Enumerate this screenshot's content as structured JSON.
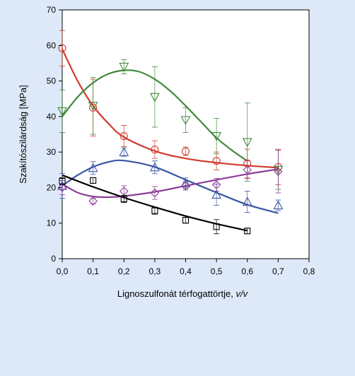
{
  "chart_data": {
    "type": "scatter",
    "xlabel": "Lignoszulfonát térfogattörtje, ",
    "xlabel_unit": "v/v",
    "ylabel": "Szakítószilárdság [MPa]",
    "xlim": [
      0,
      0.8
    ],
    "ylim": [
      0,
      70
    ],
    "x_ticks": [
      "0,0",
      "0,1",
      "0,2",
      "0,3",
      "0,4",
      "0,5",
      "0,6",
      "0,7",
      "0,8"
    ],
    "y_ticks": [
      "0",
      "10",
      "20",
      "30",
      "40",
      "50",
      "60",
      "70"
    ],
    "grid": false,
    "legend": "none",
    "series": [
      {
        "marker": "circle",
        "color": "#d23a2c",
        "points": [
          [
            0.0,
            59.2
          ],
          [
            0.1,
            42.5
          ],
          [
            0.2,
            34.5
          ],
          [
            0.3,
            30.7
          ],
          [
            0.4,
            30.2
          ],
          [
            0.5,
            27.5
          ],
          [
            0.6,
            26.8
          ],
          [
            0.7,
            25.8
          ]
        ],
        "errors": [
          [
            5.0,
            5.0
          ],
          [
            8.0,
            8.0
          ],
          [
            3.0,
            3.0
          ],
          [
            2.5,
            2.5
          ],
          [
            1.2,
            1.2
          ],
          [
            2.5,
            2.5
          ],
          [
            4.0,
            4.0
          ],
          [
            5.0,
            5.0
          ]
        ],
        "curve": [
          [
            0.0,
            59.0
          ],
          [
            0.05,
            50.0
          ],
          [
            0.1,
            43.0
          ],
          [
            0.15,
            38.0
          ],
          [
            0.2,
            34.2
          ],
          [
            0.3,
            30.3
          ],
          [
            0.4,
            28.2
          ],
          [
            0.5,
            27.0
          ],
          [
            0.6,
            26.2
          ],
          [
            0.7,
            25.6
          ]
        ]
      },
      {
        "marker": "triangle-down",
        "color": "#3f8a3a",
        "points": [
          [
            0.0,
            41.5
          ],
          [
            0.1,
            43.0
          ],
          [
            0.2,
            54.0
          ],
          [
            0.3,
            45.5
          ],
          [
            0.4,
            39.0
          ],
          [
            0.5,
            34.5
          ],
          [
            0.6,
            32.8
          ],
          [
            0.7,
            25.0
          ]
        ],
        "errors": [
          [
            6.0,
            6.0
          ],
          [
            8.0,
            8.0
          ],
          [
            2.0,
            2.0
          ],
          [
            8.5,
            8.5
          ],
          [
            3.5,
            3.5
          ],
          [
            5.0,
            5.0
          ],
          [
            11.0,
            11.0
          ],
          [
            5.5,
            5.5
          ]
        ],
        "curve": [
          [
            0.0,
            40.0
          ],
          [
            0.05,
            45.5
          ],
          [
            0.1,
            49.5
          ],
          [
            0.15,
            52.0
          ],
          [
            0.2,
            53.0
          ],
          [
            0.25,
            52.6
          ],
          [
            0.3,
            50.5
          ],
          [
            0.35,
            47.2
          ],
          [
            0.4,
            43.0
          ],
          [
            0.45,
            38.5
          ],
          [
            0.5,
            34.0
          ],
          [
            0.55,
            30.5
          ],
          [
            0.6,
            27.5
          ]
        ]
      },
      {
        "marker": "triangle-up",
        "color": "#3a55a4",
        "points": [
          [
            0.0,
            20.5
          ],
          [
            0.1,
            25.5
          ],
          [
            0.2,
            30.0
          ],
          [
            0.3,
            25.7
          ],
          [
            0.4,
            21.2
          ],
          [
            0.5,
            18.0
          ],
          [
            0.6,
            16.0
          ],
          [
            0.7,
            15.0
          ]
        ],
        "errors": [
          [
            3.5,
            3.5
          ],
          [
            1.8,
            1.8
          ],
          [
            1.2,
            1.2
          ],
          [
            1.8,
            1.8
          ],
          [
            1.5,
            1.5
          ],
          [
            3.0,
            3.0
          ],
          [
            3.0,
            3.0
          ],
          [
            1.5,
            1.5
          ]
        ],
        "curve": [
          [
            0.0,
            20.5
          ],
          [
            0.05,
            23.5
          ],
          [
            0.1,
            25.8
          ],
          [
            0.15,
            27.2
          ],
          [
            0.2,
            27.6
          ],
          [
            0.3,
            25.8
          ],
          [
            0.4,
            22.2
          ],
          [
            0.5,
            18.6
          ],
          [
            0.6,
            15.2
          ],
          [
            0.7,
            12.8
          ]
        ]
      },
      {
        "marker": "diamond",
        "color": "#8e3e9a",
        "points": [
          [
            0.0,
            20.0
          ],
          [
            0.1,
            16.2
          ],
          [
            0.2,
            19.0
          ],
          [
            0.3,
            18.5
          ],
          [
            0.4,
            20.5
          ],
          [
            0.5,
            20.8
          ],
          [
            0.6,
            25.0
          ],
          [
            0.7,
            24.5
          ]
        ],
        "errors": [
          [
            2.0,
            2.0
          ],
          [
            0.8,
            0.8
          ],
          [
            1.5,
            1.5
          ],
          [
            1.8,
            1.8
          ],
          [
            1.2,
            1.2
          ],
          [
            1.8,
            1.8
          ],
          [
            2.5,
            2.5
          ],
          [
            6.0,
            6.0
          ]
        ],
        "curve": [
          [
            0.0,
            21.0
          ],
          [
            0.05,
            18.6
          ],
          [
            0.1,
            17.5
          ],
          [
            0.15,
            17.3
          ],
          [
            0.2,
            17.6
          ],
          [
            0.3,
            18.8
          ],
          [
            0.4,
            20.5
          ],
          [
            0.5,
            22.2
          ],
          [
            0.6,
            23.8
          ],
          [
            0.7,
            25.2
          ]
        ]
      },
      {
        "marker": "square",
        "color": "#000000",
        "points": [
          [
            0.0,
            21.8
          ],
          [
            0.1,
            22.0
          ],
          [
            0.2,
            16.8
          ],
          [
            0.3,
            13.5
          ],
          [
            0.4,
            10.8
          ],
          [
            0.5,
            9.0
          ],
          [
            0.6,
            7.8
          ]
        ],
        "errors": [
          [
            1.0,
            1.0
          ],
          [
            0.8,
            0.8
          ],
          [
            1.0,
            1.0
          ],
          [
            1.0,
            1.0
          ],
          [
            0.8,
            0.8
          ],
          [
            2.0,
            2.0
          ],
          [
            0.8,
            0.8
          ]
        ],
        "curve": [
          [
            0.0,
            23.5
          ],
          [
            0.1,
            20.2
          ],
          [
            0.2,
            17.2
          ],
          [
            0.3,
            14.5
          ],
          [
            0.4,
            12.0
          ],
          [
            0.5,
            9.8
          ],
          [
            0.6,
            7.9
          ]
        ]
      }
    ]
  }
}
